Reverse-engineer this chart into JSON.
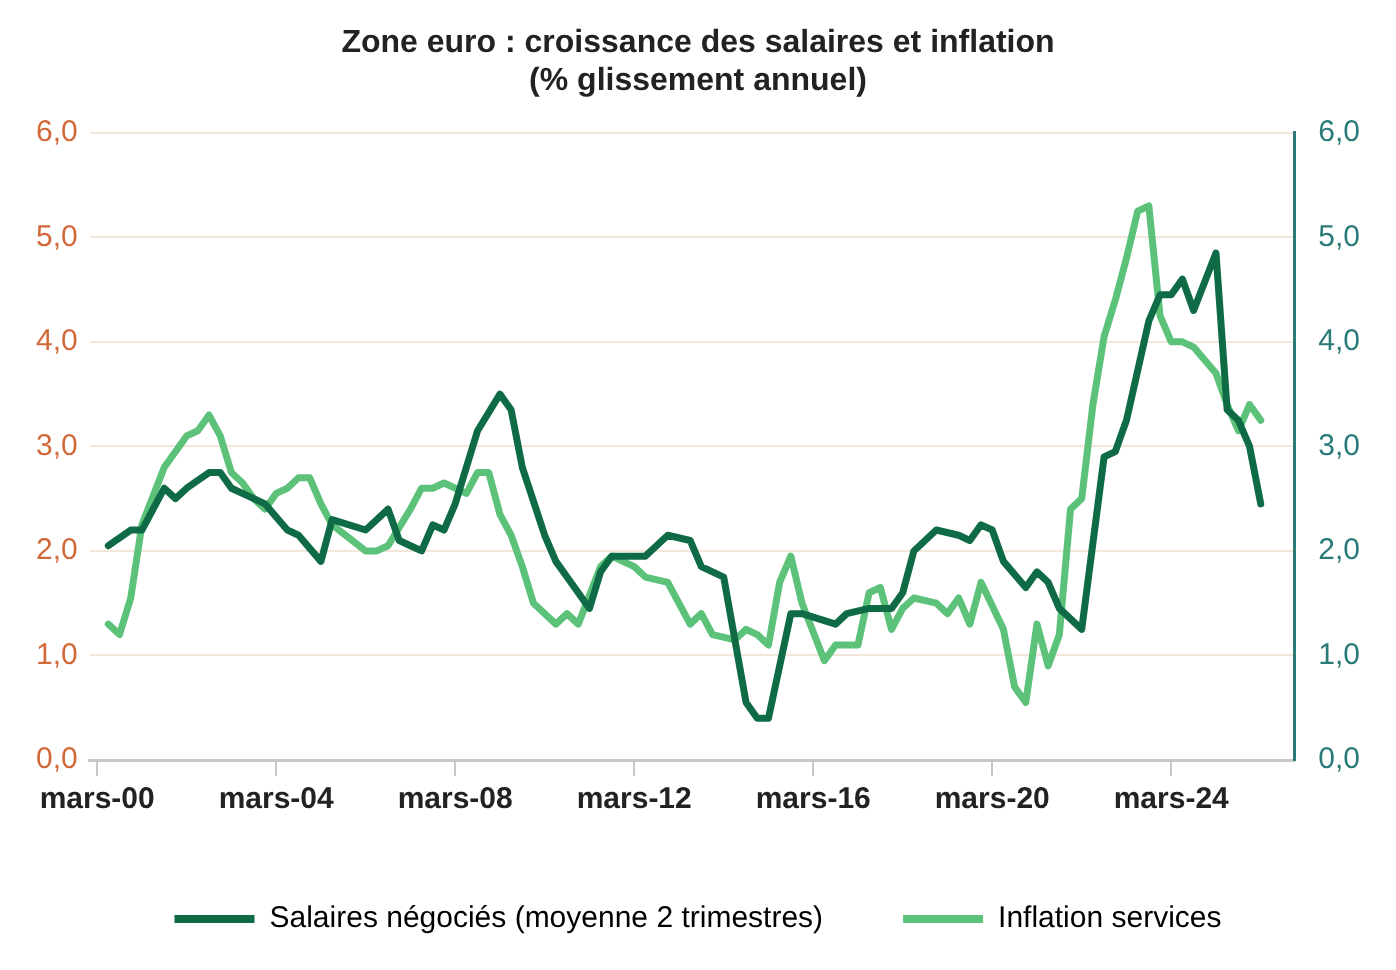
{
  "chart_data": {
    "type": "line",
    "title": "Zone euro : croissance des salaires et inflation\n(% glissement annuel)",
    "series": [
      {
        "name": "Salaires négociés (moyenne 2 trimestres)",
        "color": "#0e6b45",
        "x": [
          "2000-06",
          "2000-12",
          "2001-03",
          "2001-09",
          "2001-12",
          "2002-03",
          "2002-09",
          "2002-12",
          "2003-03",
          "2003-09",
          "2003-12",
          "2004-06",
          "2004-09",
          "2005-03",
          "2005-06",
          "2006-03",
          "2006-09",
          "2006-12",
          "2007-03",
          "2007-06",
          "2007-09",
          "2007-12",
          "2008-03",
          "2008-09",
          "2009-03",
          "2009-06",
          "2009-09",
          "2010-03",
          "2010-06",
          "2010-09",
          "2011-03",
          "2011-06",
          "2011-09",
          "2012-06",
          "2012-12",
          "2013-06",
          "2013-09",
          "2014-03",
          "2014-06",
          "2014-09",
          "2014-12",
          "2015-03",
          "2015-06",
          "2015-09",
          "2015-12",
          "2016-09",
          "2016-12",
          "2017-06",
          "2017-12",
          "2018-03",
          "2018-06",
          "2018-12",
          "2019-06",
          "2019-09",
          "2019-12",
          "2020-03",
          "2020-06",
          "2020-12",
          "2021-03",
          "2021-06",
          "2021-09",
          "2022-03",
          "2022-09",
          "2022-12",
          "2023-03",
          "2023-09",
          "2023-12",
          "2024-03",
          "2024-06",
          "2024-09",
          "2025-03",
          "2025-06",
          "2025-09",
          "2025-12",
          "2026-03"
        ],
        "values": [
          2.05,
          2.2,
          2.2,
          2.6,
          2.5,
          2.6,
          2.75,
          2.75,
          2.6,
          2.5,
          2.45,
          2.2,
          2.15,
          1.9,
          2.3,
          2.2,
          2.4,
          2.1,
          2.05,
          2.0,
          2.25,
          2.2,
          2.45,
          3.15,
          3.5,
          3.35,
          2.8,
          2.15,
          1.9,
          1.75,
          1.45,
          1.8,
          1.95,
          1.95,
          2.15,
          2.1,
          1.85,
          1.75,
          1.15,
          0.55,
          0.4,
          0.4,
          0.9,
          1.4,
          1.4,
          1.3,
          1.4,
          1.45,
          1.45,
          1.6,
          2.0,
          2.2,
          2.15,
          2.1,
          2.25,
          2.2,
          1.9,
          1.65,
          1.8,
          1.7,
          1.45,
          1.25,
          2.9,
          2.95,
          3.25,
          4.2,
          4.45,
          4.45,
          4.6,
          4.3,
          4.85,
          3.35,
          3.25,
          3.0,
          2.45
        ]
      },
      {
        "name": "Inflation services",
        "color": "#5cc27a",
        "x": [
          "2000-06",
          "2000-09",
          "2000-12",
          "2001-03",
          "2001-09",
          "2002-03",
          "2002-06",
          "2002-09",
          "2002-12",
          "2003-03",
          "2003-06",
          "2003-09",
          "2003-12",
          "2004-03",
          "2004-06",
          "2004-09",
          "2004-12",
          "2005-03",
          "2005-06",
          "2006-03",
          "2006-06",
          "2006-09",
          "2007-03",
          "2007-06",
          "2007-09",
          "2007-12",
          "2008-06",
          "2008-09",
          "2008-12",
          "2009-03",
          "2009-06",
          "2009-09",
          "2009-12",
          "2010-06",
          "2010-09",
          "2010-12",
          "2011-06",
          "2011-09",
          "2012-03",
          "2012-06",
          "2012-12",
          "2013-06",
          "2013-09",
          "2013-12",
          "2014-06",
          "2014-09",
          "2014-12",
          "2015-03",
          "2015-06",
          "2015-09",
          "2015-12",
          "2016-06",
          "2016-09",
          "2017-03",
          "2017-06",
          "2017-09",
          "2017-12",
          "2018-03",
          "2018-06",
          "2018-12",
          "2019-03",
          "2019-06",
          "2019-09",
          "2019-12",
          "2020-06",
          "2020-09",
          "2020-12",
          "2021-03",
          "2021-06",
          "2021-09",
          "2021-12",
          "2022-03",
          "2022-06",
          "2022-09",
          "2022-12",
          "2023-03",
          "2023-06",
          "2023-09",
          "2023-12",
          "2024-03",
          "2024-06",
          "2024-09",
          "2025-03",
          "2025-06",
          "2025-09",
          "2025-12",
          "2026-03"
        ],
        "values": [
          1.3,
          1.2,
          1.55,
          2.25,
          2.8,
          3.1,
          3.15,
          3.3,
          3.1,
          2.75,
          2.65,
          2.5,
          2.4,
          2.55,
          2.6,
          2.7,
          2.7,
          2.45,
          2.25,
          2.0,
          2.0,
          2.05,
          2.4,
          2.6,
          2.6,
          2.65,
          2.55,
          2.75,
          2.75,
          2.35,
          2.15,
          1.85,
          1.5,
          1.3,
          1.4,
          1.3,
          1.85,
          1.95,
          1.85,
          1.75,
          1.7,
          1.3,
          1.4,
          1.2,
          1.15,
          1.25,
          1.2,
          1.1,
          1.7,
          1.95,
          1.5,
          0.95,
          1.1,
          1.1,
          1.6,
          1.65,
          1.25,
          1.45,
          1.55,
          1.5,
          1.4,
          1.55,
          1.3,
          1.7,
          1.25,
          0.7,
          0.55,
          1.3,
          0.9,
          1.2,
          2.4,
          2.5,
          3.4,
          4.05,
          4.4,
          4.8,
          5.25,
          5.3,
          4.25,
          4.0,
          4.0,
          3.95,
          3.7,
          3.4,
          3.15,
          3.4,
          3.25
        ]
      }
    ],
    "xlim": [
      "2000-01",
      "2026-12"
    ],
    "xticks": [
      {
        "value": "2000-03",
        "label": "mars-00"
      },
      {
        "value": "2004-03",
        "label": "mars-04"
      },
      {
        "value": "2008-03",
        "label": "mars-08"
      },
      {
        "value": "2012-03",
        "label": "mars-12"
      },
      {
        "value": "2016-03",
        "label": "mars-16"
      },
      {
        "value": "2020-03",
        "label": "mars-20"
      },
      {
        "value": "2024-03",
        "label": "mars-24"
      }
    ],
    "ylim": [
      0,
      6
    ],
    "yticks": [
      {
        "value": 0,
        "label": "0,0"
      },
      {
        "value": 1,
        "label": "1,0"
      },
      {
        "value": 2,
        "label": "2,0"
      },
      {
        "value": 3,
        "label": "3,0"
      },
      {
        "value": 4,
        "label": "4,0"
      },
      {
        "value": 5,
        "label": "5,0"
      },
      {
        "value": 6,
        "label": "6,0"
      }
    ],
    "y2lim": [
      0,
      6
    ],
    "y2ticks": [
      {
        "value": 0,
        "label": "0,0"
      },
      {
        "value": 1,
        "label": "1,0"
      },
      {
        "value": 2,
        "label": "2,0"
      },
      {
        "value": 3,
        "label": "3,0"
      },
      {
        "value": 4,
        "label": "4,0"
      },
      {
        "value": 5,
        "label": "5,0"
      },
      {
        "value": 6,
        "label": "6,0"
      }
    ],
    "grid": "y",
    "legend": "bottom",
    "marker": "none",
    "line_style": "solid"
  }
}
